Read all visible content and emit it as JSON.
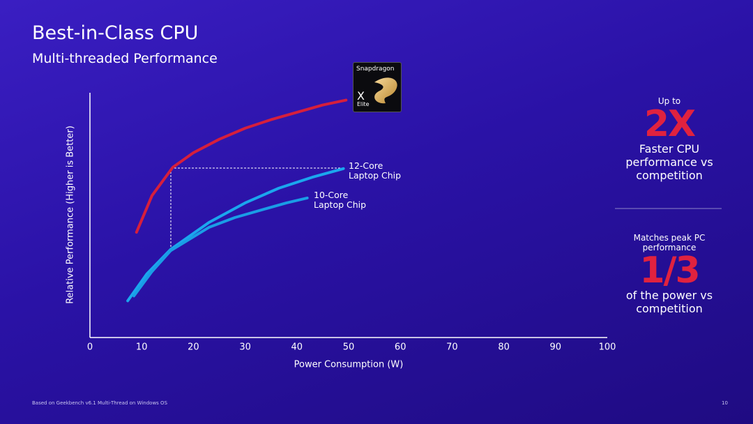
{
  "title": "Best-in-Class CPU",
  "subtitle": "Multi-threaded Performance",
  "chart_data": {
    "type": "line",
    "xlabel": "Power Consumption (W)",
    "ylabel": "Relative Performance  (Higher is Better)",
    "xlim": [
      0,
      100
    ],
    "xticks": [
      0,
      10,
      20,
      30,
      40,
      50,
      60,
      70,
      80,
      90,
      100
    ],
    "ylim": [
      0,
      100
    ],
    "grid": false,
    "logo": {
      "brand": "Snapdragon",
      "model": "X",
      "edition": "Elite"
    },
    "series": [
      {
        "color": "#d61f3c",
        "x": [
          9,
          12,
          16,
          20,
          25,
          30,
          35,
          40,
          45,
          49.5
        ],
        "values": [
          43,
          58,
          69.5,
          75.5,
          81,
          85.5,
          89,
          92,
          95,
          97
        ]
      },
      {
        "name": "12-Core Laptop Chip",
        "color": "#1ba6ee",
        "x": [
          7.3,
          11,
          15.6,
          23,
          30,
          36.5,
          43,
          49
        ],
        "values": [
          15,
          26,
          36,
          47,
          55,
          61,
          65.5,
          69
        ]
      },
      {
        "name": "10-Core Laptop Chip",
        "color": "#1a9de6",
        "x": [
          8.5,
          12,
          15.6,
          23,
          28,
          33.8,
          38,
          42
        ],
        "values": [
          17,
          27,
          35.5,
          45,
          49,
          52.5,
          55,
          57
        ]
      }
    ]
  },
  "callouts": [
    {
      "lead": "Up to",
      "figure": "2X",
      "text": "Faster CPU performance vs competition"
    },
    {
      "lead": "Matches peak PC performance",
      "figure": "1/3",
      "text": "of the power vs competition"
    }
  ],
  "footnote": "Based on Geekbench v6.1 Multi-Thread on Windows OS",
  "page_number": "10"
}
